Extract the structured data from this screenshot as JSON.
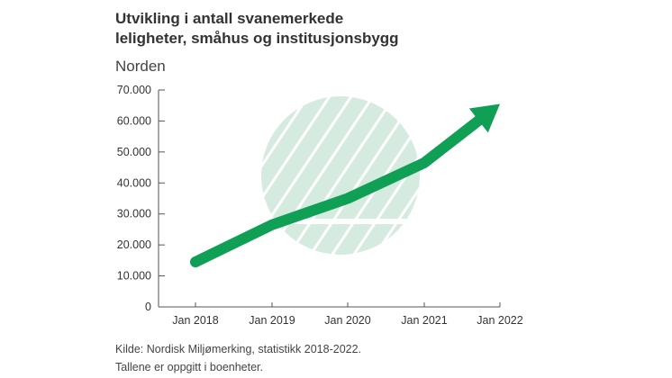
{
  "chart_data": {
    "type": "line",
    "title": "Utvikling i antall svanemerkede leligheter, småhus og institusjonsbygg",
    "title_lines": [
      "Utvikling i antall svanemerkede",
      "leligheter, småhus og institusjonsbygg"
    ],
    "subtitle": "Norden",
    "xlabel": "",
    "ylabel": "",
    "x": [
      "Jan 2018",
      "Jan 2019",
      "Jan 2020",
      "Jan 2021",
      "Jan 2022"
    ],
    "series": [
      {
        "name": "Norden",
        "values": [
          14500,
          26500,
          35000,
          46500,
          65500
        ]
      }
    ],
    "ylim": [
      0,
      70000
    ],
    "yticks": [
      0,
      10000,
      20000,
      30000,
      40000,
      50000,
      60000,
      70000
    ],
    "ytick_labels": [
      "0",
      "10.000",
      "20.000",
      "30.000",
      "40.000",
      "50.000",
      "60.000",
      "70.000"
    ],
    "grid": false,
    "line_color": "#0fa055",
    "watermark_color": "#d6ebdf"
  },
  "footer": {
    "source": "Kilde: Nordisk Miljømerking, statistikk 2018-2022.",
    "note": "Tallene er oppgitt i boenheter."
  }
}
